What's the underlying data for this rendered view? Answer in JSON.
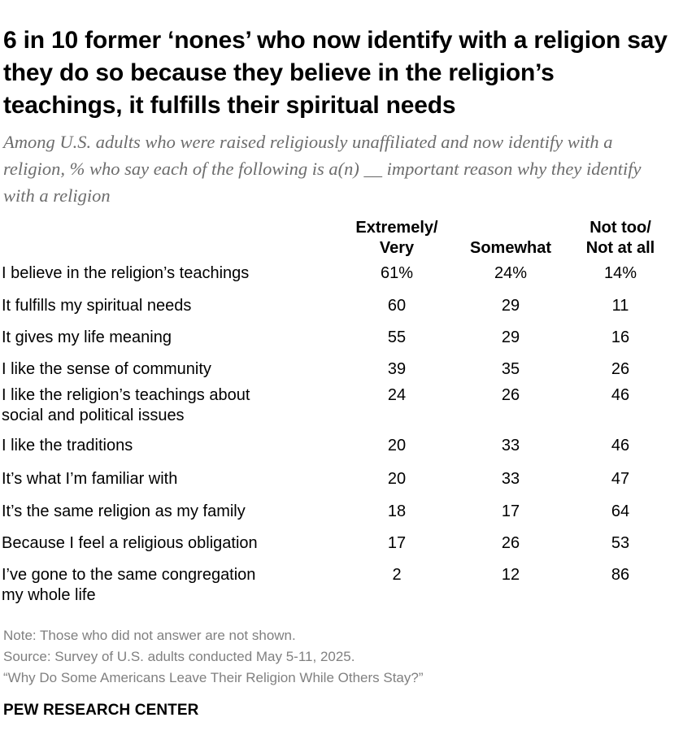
{
  "title": "6 in 10 former ‘nones’ who now identify with a religion say they do so because they believe in the religion’s teachings, it fulfills their spiritual needs",
  "subtitle": "Among U.S. adults who were raised religiously unaffiliated and now identify with a religion, % who say each of the following is a(n) __ important reason why they identify with a religion",
  "chart_data": {
    "type": "table",
    "columns": [
      "Extremely/ Very",
      "Somewhat",
      "Not too/ Not at all"
    ],
    "columns_lines": [
      [
        "Extremely/",
        "Very"
      ],
      [
        "Somewhat"
      ],
      [
        "Not too/",
        "Not at all"
      ]
    ],
    "rows": [
      {
        "label": "I believe in the religion’s teachings",
        "label_lines": [
          "I believe in the religion’s teachings"
        ],
        "values": [
          "61%",
          "24%",
          "14%"
        ]
      },
      {
        "label": "It fulfills my spiritual needs",
        "label_lines": [
          "It fulfills my spiritual needs"
        ],
        "values": [
          "60",
          "29",
          "11"
        ]
      },
      {
        "label": "It gives my life meaning",
        "label_lines": [
          "It gives my life meaning"
        ],
        "values": [
          "55",
          "29",
          "16"
        ]
      },
      {
        "label": "I like the sense of community",
        "label_lines": [
          "I like the sense of community"
        ],
        "values": [
          "39",
          "35",
          "26"
        ]
      },
      {
        "label": "I like the religion’s teachings about social and political issues",
        "label_lines": [
          "I like the religion’s teachings about",
          "social and political issues"
        ],
        "values": [
          "24",
          "26",
          "46"
        ]
      },
      {
        "label": "I like the traditions",
        "label_lines": [
          "I like the traditions"
        ],
        "values": [
          "20",
          "33",
          "46"
        ]
      },
      {
        "label": "It’s what I’m familiar with",
        "label_lines": [
          "It’s what I’m familiar with"
        ],
        "values": [
          "20",
          "33",
          "47"
        ]
      },
      {
        "label": "It’s the same religion as my family",
        "label_lines": [
          "It’s the same religion as my family"
        ],
        "values": [
          "18",
          "17",
          "64"
        ]
      },
      {
        "label": "Because I feel a religious obligation",
        "label_lines": [
          "Because I feel a religious obligation"
        ],
        "values": [
          "17",
          "26",
          "53"
        ]
      },
      {
        "label": "I’ve gone to the same congregation my whole life",
        "label_lines": [
          "I’ve gone to the same congregation",
          "my whole life"
        ],
        "values": [
          "2",
          "12",
          "86"
        ]
      }
    ]
  },
  "notes": {
    "note": "Note: Those who did not answer are not shown.",
    "source": "Source: Survey of U.S. adults conducted May 5-11, 2025.",
    "report": "“Why Do Some Americans Leave Their Religion While Others Stay?”"
  },
  "brand": "PEW RESEARCH CENTER"
}
